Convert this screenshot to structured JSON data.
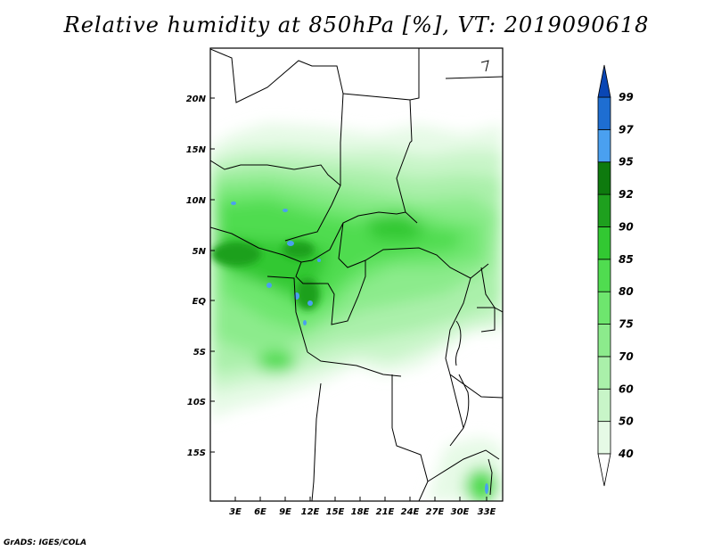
{
  "title": "Relative humidity at 850hPa [%], VT: 2019090618",
  "credit": "GrADS: IGES/COLA",
  "map": {
    "lat_labels": [
      "20N",
      "15N",
      "10N",
      "5N",
      "EQ",
      "5S",
      "10S",
      "15S"
    ],
    "lon_labels": [
      "3E",
      "6E",
      "9E",
      "12E",
      "15E",
      "18E",
      "21E",
      "24E",
      "27E",
      "30E",
      "33E"
    ]
  },
  "colorbar": {
    "levels": [
      "40",
      "50",
      "60",
      "70",
      "75",
      "80",
      "85",
      "90",
      "92",
      "95",
      "97",
      "99"
    ],
    "colors": [
      "#ffffff",
      "#e6fae6",
      "#c8f5c8",
      "#aaf0aa",
      "#8ceb8c",
      "#6ee66e",
      "#50dc50",
      "#32c832",
      "#1ea01e",
      "#0e7a0e",
      "#4aa0f0",
      "#1e6ed2",
      "#0a46b4"
    ]
  }
}
